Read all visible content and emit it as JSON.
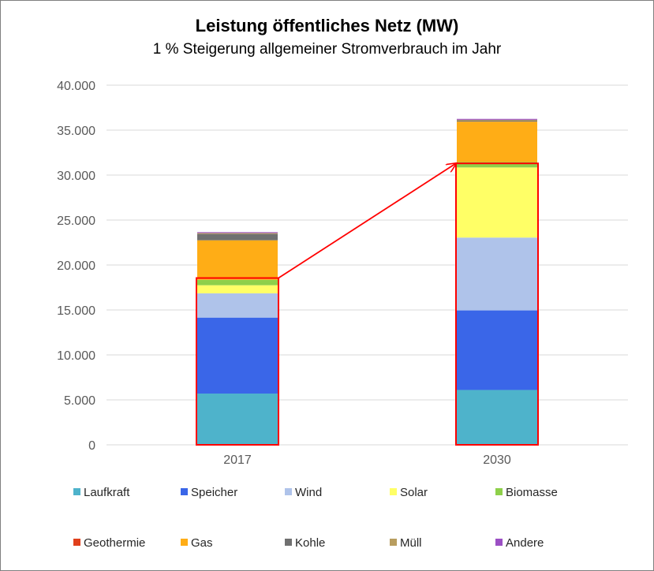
{
  "chart_data": {
    "type": "bar",
    "stacked": true,
    "title": "Leistung öffentliches Netz (MW)",
    "subtitle": "1 % Steigerung allgemeiner Stromverbrauch im Jahr",
    "categories": [
      "2017",
      "2030"
    ],
    "ylim": [
      0,
      40000
    ],
    "yticks": [
      "0",
      "5.000",
      "10.000",
      "15.000",
      "20.000",
      "25.000",
      "30.000",
      "35.000",
      "40.000"
    ],
    "ytick_values": [
      0,
      5000,
      10000,
      15000,
      20000,
      25000,
      30000,
      35000,
      40000
    ],
    "grid": true,
    "legend_position": "bottom",
    "series": [
      {
        "name": "Laufkraft",
        "color": "#4eb3cb",
        "values": [
          5700,
          6100
        ]
      },
      {
        "name": "Speicher",
        "color": "#3a66e8",
        "values": [
          8450,
          8850
        ]
      },
      {
        "name": "Wind",
        "color": "#afc3ea",
        "values": [
          2700,
          8100
        ]
      },
      {
        "name": "Solar",
        "color": "#ffff66",
        "values": [
          900,
          7800
        ]
      },
      {
        "name": "Biomasse",
        "color": "#8ed04a",
        "values": [
          600,
          600
        ]
      },
      {
        "name": "Geothermie",
        "color": "#e0401c",
        "values": [
          0,
          0
        ]
      },
      {
        "name": "Gas",
        "color": "#ffad16",
        "values": [
          4400,
          4500
        ]
      },
      {
        "name": "Kohle",
        "color": "#707070",
        "values": [
          700,
          100
        ]
      },
      {
        "name": "Müll",
        "color": "#b89d5f",
        "values": [
          100,
          100
        ]
      },
      {
        "name": "Andere",
        "color": "#9b4fc4",
        "values": [
          100,
          100
        ]
      }
    ],
    "annotations": [
      {
        "type": "highlight-box",
        "category": "2017",
        "y_range": [
          0,
          18550
        ],
        "color": "#ff0000"
      },
      {
        "type": "highlight-box",
        "category": "2030",
        "y_range": [
          0,
          31300
        ],
        "color": "#ff0000"
      },
      {
        "type": "arrow",
        "from": {
          "category": "2017",
          "y": 18550
        },
        "to": {
          "category": "2030",
          "y": 31300
        },
        "color": "#ff0000"
      }
    ]
  }
}
